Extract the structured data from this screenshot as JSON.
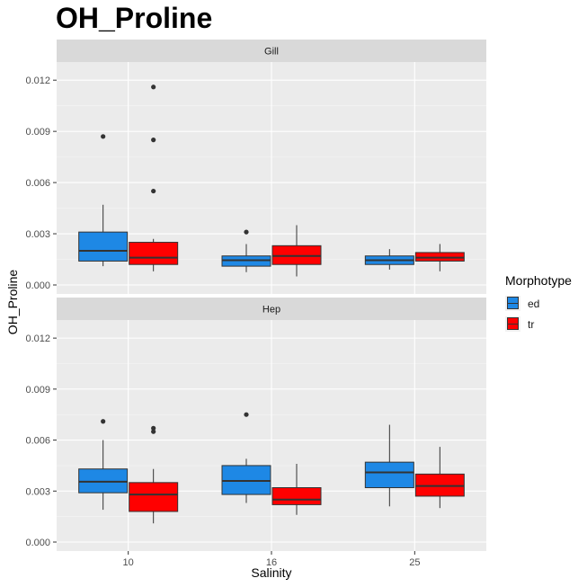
{
  "chart_data": {
    "type": "boxplot",
    "title": "OH_Proline",
    "xlabel": "Salinity",
    "ylabel": "OH_Proline",
    "categories": [
      "10",
      "16",
      "25"
    ],
    "ylim": [
      0,
      0.0128
    ],
    "yticks": [
      "0.000",
      "0.003",
      "0.006",
      "0.009",
      "0.012"
    ],
    "legend": {
      "title": "Morphotype",
      "position": "right",
      "items": [
        {
          "label": "ed",
          "color": "#1e88e5"
        },
        {
          "label": "tr",
          "color": "#ff0000"
        }
      ]
    },
    "facets": [
      {
        "label": "Gill",
        "series": [
          {
            "name": "ed",
            "boxes": [
              {
                "category": "10",
                "whisker_low": 0.0011,
                "q1": 0.0014,
                "median": 0.002,
                "q3": 0.0031,
                "whisker_high": 0.0047,
                "outliers": [
                  0.0087
                ]
              },
              {
                "category": "16",
                "whisker_low": 0.00075,
                "q1": 0.0011,
                "median": 0.00145,
                "q3": 0.0017,
                "whisker_high": 0.0024,
                "outliers": [
                  0.0031
                ]
              },
              {
                "category": "25",
                "whisker_low": 0.0009,
                "q1": 0.0012,
                "median": 0.00145,
                "q3": 0.0017,
                "whisker_high": 0.0021,
                "outliers": []
              }
            ]
          },
          {
            "name": "tr",
            "boxes": [
              {
                "category": "10",
                "whisker_low": 0.0008,
                "q1": 0.0012,
                "median": 0.0016,
                "q3": 0.0025,
                "whisker_high": 0.0027,
                "outliers": [
                  0.0055,
                  0.0085,
                  0.0116
                ]
              },
              {
                "category": "16",
                "whisker_low": 0.0005,
                "q1": 0.0012,
                "median": 0.0017,
                "q3": 0.0023,
                "whisker_high": 0.0035,
                "outliers": []
              },
              {
                "category": "25",
                "whisker_low": 0.0008,
                "q1": 0.0014,
                "median": 0.0016,
                "q3": 0.0019,
                "whisker_high": 0.0024,
                "outliers": []
              }
            ]
          }
        ]
      },
      {
        "label": "Hep",
        "series": [
          {
            "name": "ed",
            "boxes": [
              {
                "category": "10",
                "whisker_low": 0.0019,
                "q1": 0.0029,
                "median": 0.00355,
                "q3": 0.0043,
                "whisker_high": 0.006,
                "outliers": [
                  0.0071
                ]
              },
              {
                "category": "16",
                "whisker_low": 0.0023,
                "q1": 0.0028,
                "median": 0.0036,
                "q3": 0.0045,
                "whisker_high": 0.0049,
                "outliers": [
                  0.0075
                ]
              },
              {
                "category": "25",
                "whisker_low": 0.0021,
                "q1": 0.0032,
                "median": 0.0041,
                "q3": 0.0047,
                "whisker_high": 0.0069,
                "outliers": []
              }
            ]
          },
          {
            "name": "tr",
            "boxes": [
              {
                "category": "10",
                "whisker_low": 0.0011,
                "q1": 0.0018,
                "median": 0.0028,
                "q3": 0.0035,
                "whisker_high": 0.0043,
                "outliers": [
                  0.0065,
                  0.0067
                ]
              },
              {
                "category": "16",
                "whisker_low": 0.0016,
                "q1": 0.0022,
                "median": 0.0025,
                "q3": 0.0032,
                "whisker_high": 0.0046,
                "outliers": []
              },
              {
                "category": "25",
                "whisker_low": 0.002,
                "q1": 0.0027,
                "median": 0.0033,
                "q3": 0.004,
                "whisker_high": 0.0056,
                "outliers": []
              }
            ]
          }
        ]
      }
    ]
  }
}
